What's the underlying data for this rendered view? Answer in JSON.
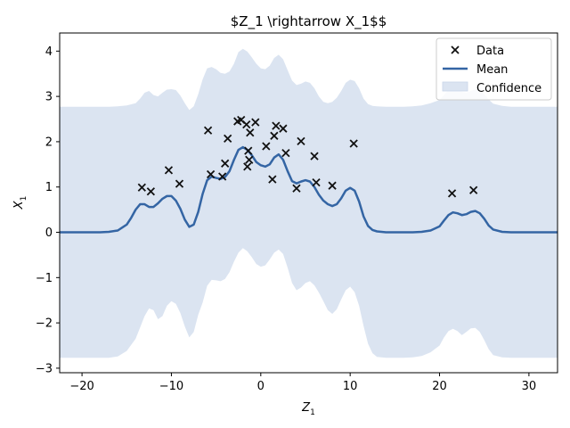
{
  "chart_data": {
    "type": "scatter",
    "title": "$Z_1 \\rightarrow X_1$$",
    "xlabel_base": "Z",
    "xlabel_sub": "1",
    "ylabel_base": "X",
    "ylabel_sub": "1",
    "xlim": [
      -22.5,
      33.2
    ],
    "ylim": [
      -3.1,
      4.4
    ],
    "xticks": [
      -20,
      -10,
      0,
      10,
      20,
      30
    ],
    "yticks": [
      -3,
      -2,
      -1,
      0,
      1,
      2,
      3,
      4
    ],
    "xtick_labels": [
      "−20",
      "−10",
      "0",
      "10",
      "20",
      "30"
    ],
    "ytick_labels": [
      "−3",
      "−2",
      "−1",
      "0",
      "1",
      "2",
      "3",
      "4"
    ],
    "legend": {
      "placement": "top-right",
      "entries": [
        "Data",
        "Mean",
        "Confidence"
      ]
    },
    "colors": {
      "mean": "#3465a4",
      "confidence": "#dbe4f1",
      "data": "#111111"
    },
    "series": [
      {
        "name": "Data",
        "kind": "scatter",
        "points": [
          [
            -13.3,
            0.99
          ],
          [
            -12.3,
            0.9
          ],
          [
            -10.3,
            1.37
          ],
          [
            -9.1,
            1.07
          ],
          [
            -5.9,
            2.25
          ],
          [
            -5.6,
            1.28
          ],
          [
            -4.3,
            1.23
          ],
          [
            -4.0,
            1.52
          ],
          [
            -3.7,
            2.07
          ],
          [
            -2.6,
            2.45
          ],
          [
            -2.2,
            2.48
          ],
          [
            -1.6,
            2.38
          ],
          [
            -1.5,
            1.45
          ],
          [
            -1.4,
            1.8
          ],
          [
            -1.3,
            1.6
          ],
          [
            -1.2,
            2.2
          ],
          [
            -0.6,
            2.43
          ],
          [
            0.6,
            1.9
          ],
          [
            1.3,
            1.17
          ],
          [
            1.5,
            2.13
          ],
          [
            1.7,
            2.35
          ],
          [
            2.5,
            2.29
          ],
          [
            2.8,
            1.75
          ],
          [
            4.0,
            0.97
          ],
          [
            4.5,
            2.01
          ],
          [
            6.0,
            1.68
          ],
          [
            6.2,
            1.1
          ],
          [
            8.0,
            1.03
          ],
          [
            10.4,
            1.96
          ],
          [
            21.4,
            0.86
          ],
          [
            23.8,
            0.93
          ]
        ]
      },
      {
        "name": "Mean",
        "kind": "line",
        "x": [
          -22.5,
          -18,
          -17,
          -16,
          -15,
          -14.5,
          -14,
          -13.5,
          -13,
          -12.5,
          -12,
          -11.5,
          -11,
          -10.5,
          -10,
          -9.5,
          -9,
          -8.5,
          -8,
          -7.5,
          -7,
          -6.5,
          -6,
          -5.5,
          -5,
          -4.5,
          -4,
          -3.5,
          -3,
          -2.5,
          -2,
          -1.5,
          -1,
          -0.5,
          0,
          0.5,
          1,
          1.5,
          2,
          2.5,
          3,
          3.5,
          4,
          4.5,
          5,
          5.5,
          6,
          6.5,
          7,
          7.5,
          8,
          8.5,
          9,
          9.5,
          10,
          10.5,
          11,
          11.5,
          12,
          12.5,
          13,
          14,
          15,
          16,
          17,
          18,
          19,
          20,
          20.5,
          21,
          21.5,
          22,
          22.5,
          23,
          23.5,
          24,
          24.5,
          25,
          25.5,
          26,
          27,
          28,
          33.2
        ],
        "y": [
          0,
          0,
          0.01,
          0.04,
          0.17,
          0.32,
          0.5,
          0.62,
          0.62,
          0.56,
          0.56,
          0.64,
          0.74,
          0.8,
          0.8,
          0.7,
          0.52,
          0.28,
          0.12,
          0.17,
          0.45,
          0.85,
          1.15,
          1.23,
          1.2,
          1.18,
          1.22,
          1.35,
          1.6,
          1.82,
          1.88,
          1.82,
          1.7,
          1.55,
          1.48,
          1.45,
          1.5,
          1.65,
          1.72,
          1.6,
          1.35,
          1.13,
          1.08,
          1.12,
          1.15,
          1.12,
          1.0,
          0.83,
          0.7,
          0.62,
          0.58,
          0.62,
          0.75,
          0.92,
          0.98,
          0.92,
          0.68,
          0.35,
          0.14,
          0.05,
          0.02,
          0,
          0,
          0,
          0,
          0.01,
          0.04,
          0.13,
          0.26,
          0.38,
          0.44,
          0.42,
          0.38,
          0.4,
          0.45,
          0.47,
          0.42,
          0.3,
          0.15,
          0.06,
          0.01,
          0,
          0
        ]
      },
      {
        "name": "Confidence",
        "kind": "band",
        "x": [
          -22.5,
          -18,
          -17,
          -16,
          -15,
          -14,
          -13.5,
          -13,
          -12.5,
          -12,
          -11.5,
          -11,
          -10.5,
          -10,
          -9.5,
          -9,
          -8.5,
          -8,
          -7.5,
          -7,
          -6.5,
          -6,
          -5.5,
          -5,
          -4.5,
          -4,
          -3.5,
          -3,
          -2.5,
          -2,
          -1.5,
          -1,
          -0.5,
          0,
          0.5,
          1,
          1.5,
          2,
          2.5,
          3,
          3.5,
          4,
          4.5,
          5,
          5.5,
          6,
          6.5,
          7,
          7.5,
          8,
          8.5,
          9,
          9.5,
          10,
          10.5,
          11,
          11.5,
          12,
          12.5,
          13,
          14,
          15,
          16,
          17,
          18,
          19,
          20,
          20.5,
          21,
          21.5,
          22,
          22.5,
          23,
          23.5,
          24,
          24.5,
          25,
          25.5,
          26,
          27,
          28,
          33.2
        ],
        "upper": [
          2.77,
          2.77,
          2.77,
          2.78,
          2.8,
          2.85,
          2.95,
          3.08,
          3.12,
          3.03,
          3.0,
          3.08,
          3.15,
          3.16,
          3.14,
          3.02,
          2.85,
          2.7,
          2.78,
          3.05,
          3.38,
          3.62,
          3.65,
          3.6,
          3.52,
          3.5,
          3.55,
          3.72,
          3.98,
          4.05,
          3.99,
          3.86,
          3.72,
          3.62,
          3.6,
          3.68,
          3.85,
          3.92,
          3.82,
          3.58,
          3.35,
          3.25,
          3.28,
          3.33,
          3.3,
          3.18,
          3.0,
          2.88,
          2.85,
          2.88,
          2.97,
          3.12,
          3.3,
          3.37,
          3.34,
          3.18,
          2.95,
          2.83,
          2.79,
          2.78,
          2.77,
          2.77,
          2.77,
          2.78,
          2.8,
          2.85,
          2.92,
          3.03,
          3.15,
          3.2,
          3.18,
          3.1,
          3.08,
          3.12,
          3.16,
          3.14,
          3.05,
          2.93,
          2.84,
          2.79,
          2.77,
          2.77
        ],
        "lower": [
          -2.77,
          -2.77,
          -2.77,
          -2.74,
          -2.62,
          -2.35,
          -2.1,
          -1.85,
          -1.68,
          -1.72,
          -1.92,
          -1.85,
          -1.62,
          -1.52,
          -1.58,
          -1.78,
          -2.08,
          -2.32,
          -2.2,
          -1.82,
          -1.55,
          -1.18,
          -1.05,
          -1.06,
          -1.08,
          -1.03,
          -0.88,
          -0.65,
          -0.45,
          -0.35,
          -0.42,
          -0.55,
          -0.7,
          -0.76,
          -0.73,
          -0.6,
          -0.45,
          -0.38,
          -0.48,
          -0.78,
          -1.12,
          -1.28,
          -1.22,
          -1.12,
          -1.08,
          -1.17,
          -1.33,
          -1.52,
          -1.72,
          -1.8,
          -1.7,
          -1.48,
          -1.28,
          -1.2,
          -1.32,
          -1.62,
          -2.07,
          -2.46,
          -2.67,
          -2.75,
          -2.77,
          -2.77,
          -2.77,
          -2.76,
          -2.73,
          -2.65,
          -2.5,
          -2.32,
          -2.18,
          -2.13,
          -2.18,
          -2.27,
          -2.2,
          -2.12,
          -2.11,
          -2.2,
          -2.38,
          -2.58,
          -2.71,
          -2.76,
          -2.77,
          -2.77
        ]
      }
    ]
  }
}
